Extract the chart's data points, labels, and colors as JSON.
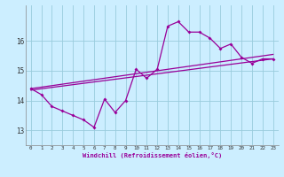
{
  "xlabel": "Windchill (Refroidissement éolien,°C)",
  "bg_color": "#cceeff",
  "grid_color": "#99ccdd",
  "line_color": "#990099",
  "xlim": [
    -0.5,
    23.5
  ],
  "ylim": [
    12.5,
    17.2
  ],
  "yticks": [
    13,
    14,
    15,
    16
  ],
  "xticks": [
    0,
    1,
    2,
    3,
    4,
    5,
    6,
    7,
    8,
    9,
    10,
    11,
    12,
    13,
    14,
    15,
    16,
    17,
    18,
    19,
    20,
    21,
    22,
    23
  ],
  "line1_x": [
    0,
    1,
    2,
    3,
    4,
    5,
    6,
    7,
    8,
    9,
    10,
    11,
    12,
    13,
    14,
    15,
    16,
    17,
    18,
    19,
    20,
    21,
    22,
    23
  ],
  "line1_y": [
    14.4,
    14.2,
    13.8,
    13.65,
    13.5,
    13.35,
    13.1,
    14.05,
    13.6,
    14.0,
    15.05,
    14.75,
    15.05,
    16.5,
    16.65,
    16.3,
    16.3,
    16.1,
    15.75,
    15.9,
    15.45,
    15.25,
    15.4,
    15.4
  ],
  "line2_x": [
    0,
    23
  ],
  "line2_y": [
    14.4,
    15.55
  ],
  "line3_x": [
    0,
    23
  ],
  "line3_y": [
    14.35,
    15.4
  ]
}
